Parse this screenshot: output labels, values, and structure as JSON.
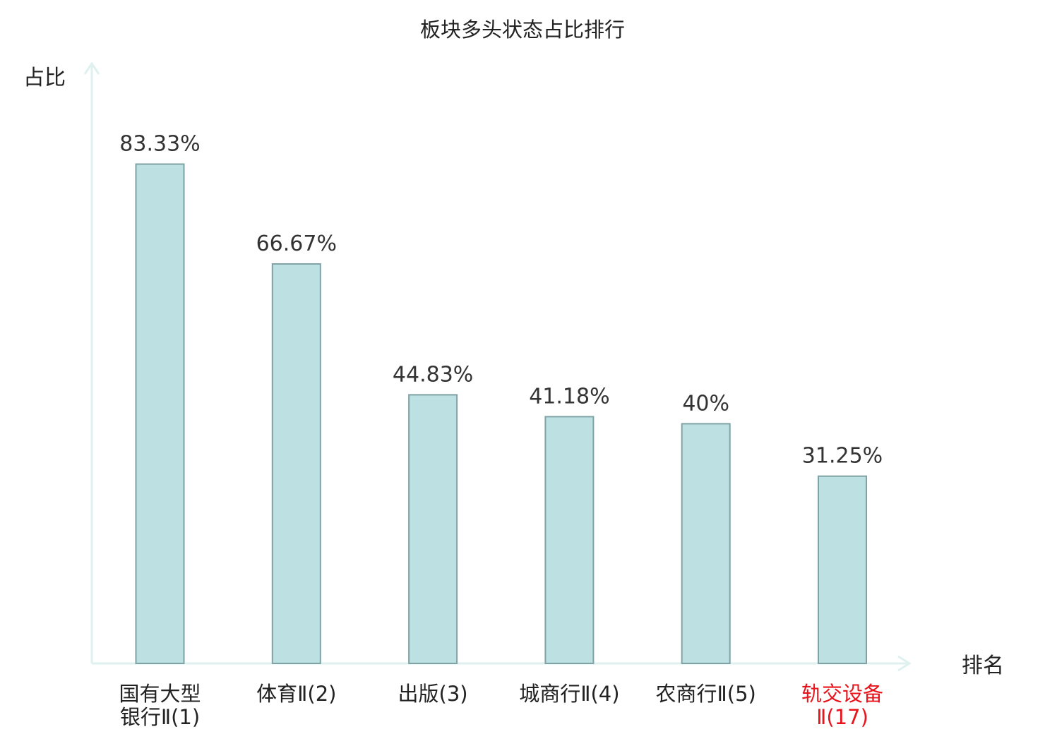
{
  "chart_data": {
    "type": "bar",
    "title": "板块多头状态占比排行",
    "xlabel": "排名",
    "ylabel": "占比",
    "categories": [
      [
        "国有大型",
        "银行Ⅱ(1)"
      ],
      [
        "体育Ⅱ(2)"
      ],
      [
        "出版(3)"
      ],
      [
        "城商行Ⅱ(4)"
      ],
      [
        "农商行Ⅱ(5)"
      ],
      [
        "轨交设备",
        "Ⅱ(17)"
      ]
    ],
    "values": [
      83.33,
      66.67,
      44.83,
      41.18,
      40,
      31.25
    ],
    "value_labels": [
      "83.33%",
      "66.67%",
      "44.83%",
      "41.18%",
      "40%",
      "31.25%"
    ],
    "highlight_index": 5,
    "ylim": [
      0,
      100
    ],
    "grid": false,
    "colors": {
      "bar_fill": "#bde0e2",
      "bar_stroke": "#7fa3a5",
      "axis": "#dff1ee",
      "text": "#222222",
      "value_text": "#333333",
      "highlight_text": "#e8141b"
    }
  }
}
